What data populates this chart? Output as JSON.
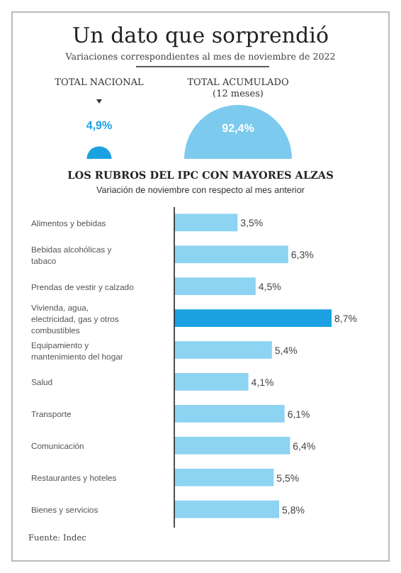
{
  "chart_data": [
    {
      "type": "other",
      "title": "Un dato que sorprendió",
      "subtitle": "Variaciones correspondientes al mes de noviembre de 2022",
      "categories": [
        "TOTAL NACIONAL",
        "TOTAL ACUMULADO (12 meses)"
      ],
      "values": [
        4.9,
        92.4
      ],
      "value_labels": [
        "4,9%",
        "92,4%"
      ],
      "colors": [
        "#1ba1e2",
        "#7ccbee"
      ]
    },
    {
      "type": "bar",
      "orientation": "horizontal",
      "title": "LOS RUBROS DEL IPC CON MAYORES ALZAS",
      "subtitle": "Variación de noviembre con respecto al mes anterior",
      "categories": [
        "Alimentos y bebidas",
        "Bebidas alcohólicas y tabaco",
        "Prendas de vestir y calzado",
        "Vivienda, agua, electricidad, gas y otros combustibles",
        "Equipamiento y mantenimiento del hogar",
        "Salud",
        "Transporte",
        "Comunicación",
        "Restaurantes y hoteles",
        "Bienes y servicios"
      ],
      "values": [
        3.5,
        6.3,
        4.5,
        8.7,
        5.4,
        4.1,
        6.1,
        6.4,
        5.5,
        5.8
      ],
      "value_labels": [
        "3,5%",
        "6,3%",
        "4,5%",
        "8,7%",
        "5,4%",
        "4,1%",
        "6,1%",
        "6,4%",
        "5,5%",
        "5,8%"
      ],
      "colors": [
        "#8dd3f2",
        "#8dd3f2",
        "#8dd3f2",
        "#1ba1e2",
        "#8dd3f2",
        "#8dd3f2",
        "#8dd3f2",
        "#8dd3f2",
        "#8dd3f2",
        "#8dd3f2"
      ],
      "annotations": [
        "Fuente: Indec"
      ]
    }
  ]
}
